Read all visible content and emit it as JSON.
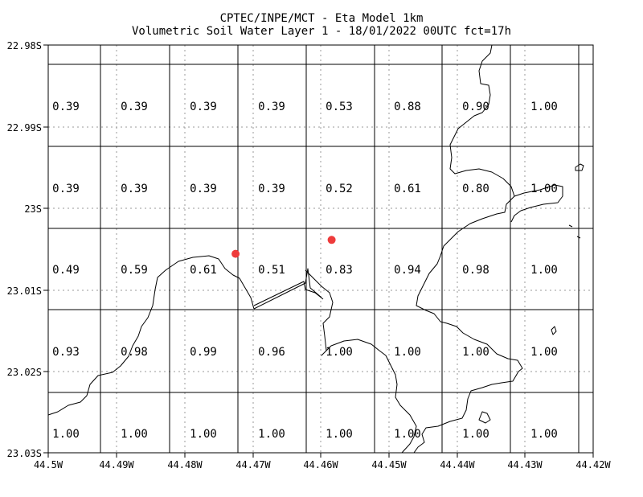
{
  "header": {
    "line1": "CPTEC/INPE/MCT -  Eta Model 1km",
    "line2": "Volumetric Soil Water Layer 1 - 18/01/2022 00UTC fct=17h"
  },
  "map": {
    "x_ticks": [
      "44.5W",
      "44.49W",
      "44.48W",
      "44.47W",
      "44.46W",
      "44.45W",
      "44.44W",
      "44.43W",
      "44.42W"
    ],
    "y_ticks": [
      "22.98S",
      "22.99S",
      "23S",
      "23.01S",
      "23.02S",
      "23.03S"
    ],
    "grid_values": [
      [
        "0.39",
        "0.39",
        "0.39",
        "0.39",
        "0.53",
        "0.88",
        "0.90",
        "1.00"
      ],
      [
        "0.39",
        "0.39",
        "0.39",
        "0.39",
        "0.52",
        "0.61",
        "0.80",
        "1.00"
      ],
      [
        "0.49",
        "0.59",
        "0.61",
        "0.51",
        "0.83",
        "0.94",
        "0.98",
        "1.00"
      ],
      [
        "0.93",
        "0.98",
        "0.99",
        "0.96",
        "1.00",
        "1.00",
        "1.00",
        "1.00"
      ],
      [
        "1.00",
        "1.00",
        "1.00",
        "1.00",
        "1.00",
        "1.00",
        "1.00",
        "1.00"
      ]
    ],
    "markers": [
      {
        "lon": -44.4725,
        "lat": -23.0056
      },
      {
        "lon": -44.4584,
        "lat": -23.0039
      }
    ],
    "colors": {
      "marker": "#ee3b3b",
      "grid": "#000000",
      "dotted": "#9a9a9a",
      "coast": "#000000"
    }
  }
}
